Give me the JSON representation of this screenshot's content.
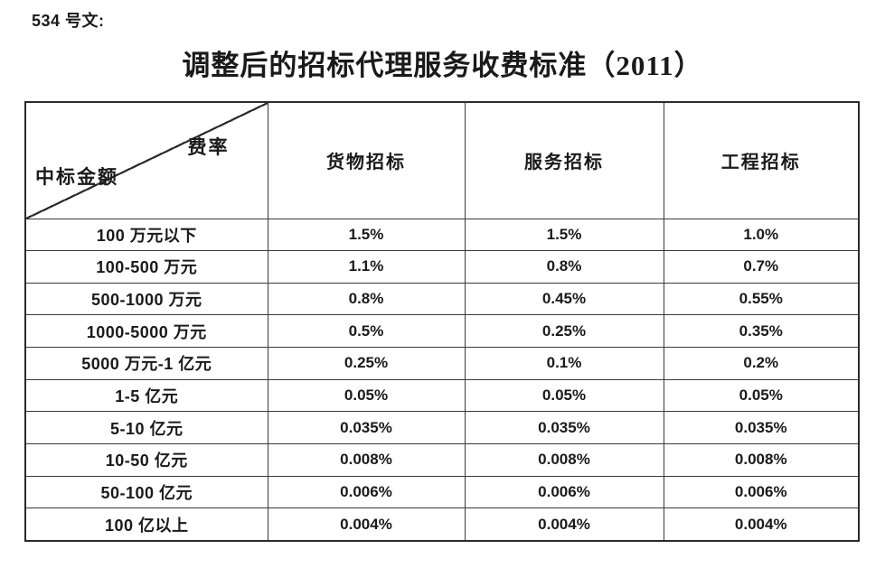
{
  "doc_number": "534 号文:",
  "title": "调整后的招标代理服务收费标准（2011）",
  "table": {
    "corner": {
      "top_right": "费率",
      "bottom_left": "中标金额"
    },
    "columns": [
      "货物招标",
      "服务招标",
      "工程招标"
    ],
    "rows": [
      {
        "label": "100 万元以下",
        "values": [
          "1.5%",
          "1.5%",
          "1.0%"
        ]
      },
      {
        "label": "100-500 万元",
        "values": [
          "1.1%",
          "0.8%",
          "0.7%"
        ]
      },
      {
        "label": "500-1000 万元",
        "values": [
          "0.8%",
          "0.45%",
          "0.55%"
        ]
      },
      {
        "label": "1000-5000 万元",
        "values": [
          "0.5%",
          "0.25%",
          "0.35%"
        ]
      },
      {
        "label": "5000 万元-1 亿元",
        "values": [
          "0.25%",
          "0.1%",
          "0.2%"
        ]
      },
      {
        "label": "1-5 亿元",
        "values": [
          "0.05%",
          "0.05%",
          "0.05%"
        ]
      },
      {
        "label": "5-10 亿元",
        "values": [
          "0.035%",
          "0.035%",
          "0.035%"
        ]
      },
      {
        "label": "10-50 亿元",
        "values": [
          "0.008%",
          "0.008%",
          "0.008%"
        ]
      },
      {
        "label": "50-100 亿元",
        "values": [
          "0.006%",
          "0.006%",
          "0.006%"
        ]
      },
      {
        "label": "100 亿以上",
        "values": [
          "0.004%",
          "0.004%",
          "0.004%"
        ]
      }
    ]
  },
  "colors": {
    "text": "#1a1a1a",
    "border": "#2b2b2b",
    "background": "#ffffff"
  }
}
